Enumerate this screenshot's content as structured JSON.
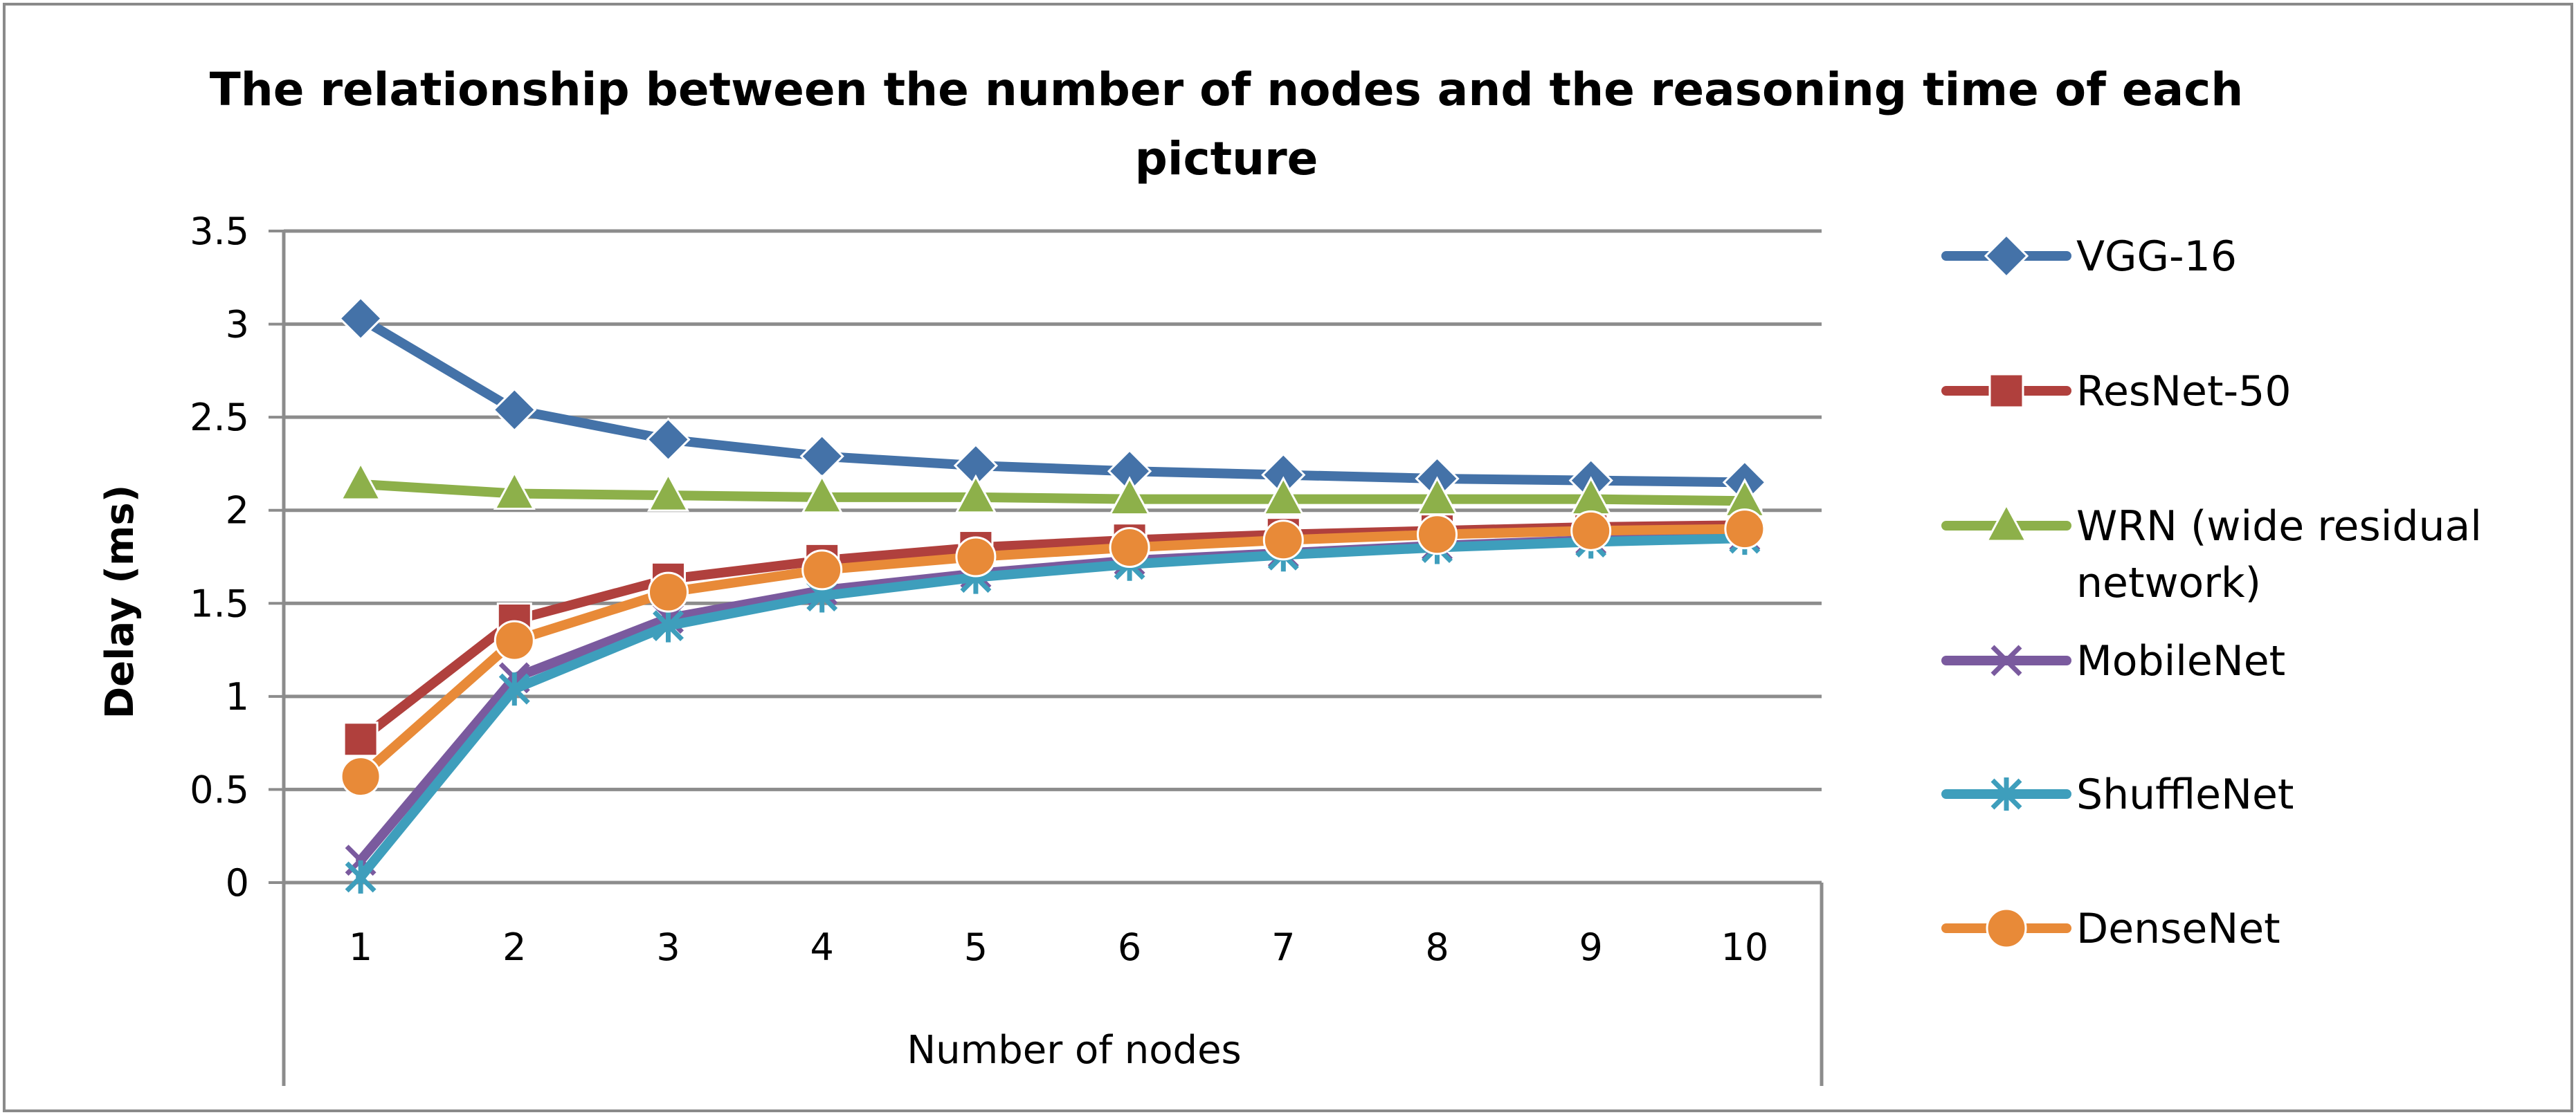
{
  "chart_data": {
    "type": "line",
    "title_line1": "The relationship between the number of nodes and the reasoning time of each",
    "title_line2": "picture",
    "xlabel": "Number of nodes",
    "ylabel": "Delay (ms)",
    "x": [
      1,
      2,
      3,
      4,
      5,
      6,
      7,
      8,
      9,
      10
    ],
    "ylim": [
      0,
      3.5
    ],
    "yticks": [
      "0",
      "0.5",
      "1",
      "1.5",
      "2",
      "2.5",
      "3",
      "3.5"
    ],
    "grid": "horizontal",
    "legend_position": "right",
    "series": [
      {
        "name": "VGG-16",
        "color": "#4472A8",
        "marker": "diamond",
        "values": [
          3.03,
          2.54,
          2.38,
          2.29,
          2.24,
          2.21,
          2.19,
          2.17,
          2.16,
          2.15
        ]
      },
      {
        "name": "ResNet-50",
        "color": "#B0403D",
        "marker": "square",
        "values": [
          0.77,
          1.41,
          1.63,
          1.73,
          1.8,
          1.84,
          1.87,
          1.89,
          1.91,
          1.92
        ]
      },
      {
        "name": "WRN (wide residual network)",
        "legend_line1": "WRN (wide residual",
        "legend_line2": "network)",
        "color": "#8DB04A",
        "marker": "triangle",
        "values": [
          2.14,
          2.09,
          2.08,
          2.07,
          2.07,
          2.06,
          2.06,
          2.06,
          2.06,
          2.05
        ]
      },
      {
        "name": "MobileNet",
        "color": "#7A5A9E",
        "marker": "x",
        "values": [
          0.12,
          1.1,
          1.42,
          1.57,
          1.66,
          1.73,
          1.77,
          1.81,
          1.84,
          1.86
        ]
      },
      {
        "name": "ShuffleNet",
        "color": "#3E9EBC",
        "marker": "asterisk",
        "values": [
          0.03,
          1.04,
          1.38,
          1.54,
          1.64,
          1.71,
          1.76,
          1.8,
          1.83,
          1.85
        ]
      },
      {
        "name": "DenseNet",
        "color": "#E88A38",
        "marker": "circle",
        "values": [
          0.57,
          1.3,
          1.56,
          1.68,
          1.75,
          1.8,
          1.84,
          1.87,
          1.89,
          1.9
        ]
      }
    ]
  }
}
